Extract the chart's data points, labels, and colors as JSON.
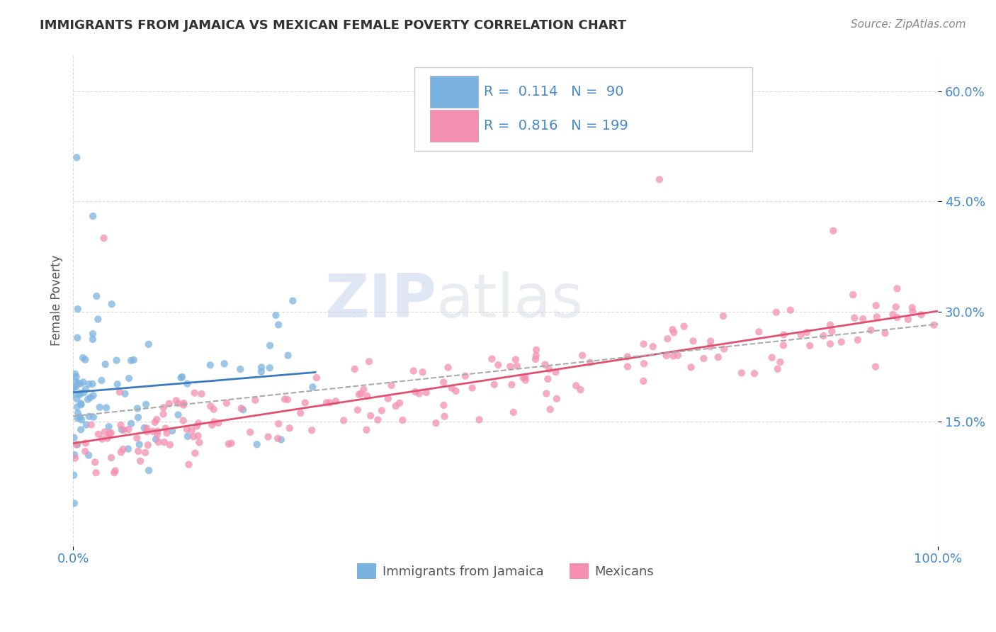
{
  "title": "IMMIGRANTS FROM JAMAICA VS MEXICAN FEMALE POVERTY CORRELATION CHART",
  "source": "Source: ZipAtlas.com",
  "ylabel": "Female Poverty",
  "xlim": [
    0,
    1.0
  ],
  "ylim": [
    -0.02,
    0.65
  ],
  "y_ticks": [
    0.15,
    0.3,
    0.45,
    0.6
  ],
  "y_tick_labels": [
    "15.0%",
    "30.0%",
    "45.0%",
    "60.0%"
  ],
  "jamaica_color": "#7bb3e0",
  "mexican_color": "#f48fb1",
  "jamaica_line_color": "#3a7abf",
  "mexican_line_color": "#e05070",
  "trendline_color": "#aaaaaa",
  "watermark_zip": "ZIP",
  "watermark_atlas": "atlas",
  "jamaica_R": 0.114,
  "jamaica_N": 90,
  "mexican_R": 0.816,
  "mexican_N": 199,
  "background_color": "#ffffff",
  "grid_color": "#cccccc",
  "title_color": "#333333",
  "axis_label_color": "#555555",
  "tick_label_color": "#4488cc",
  "source_color": "#888888",
  "legend_text_1": "R =  0.114   N =  90",
  "legend_text_2": "R =  0.816   N = 199",
  "bottom_legend_1": "Immigrants from Jamaica",
  "bottom_legend_2": "Mexicans"
}
